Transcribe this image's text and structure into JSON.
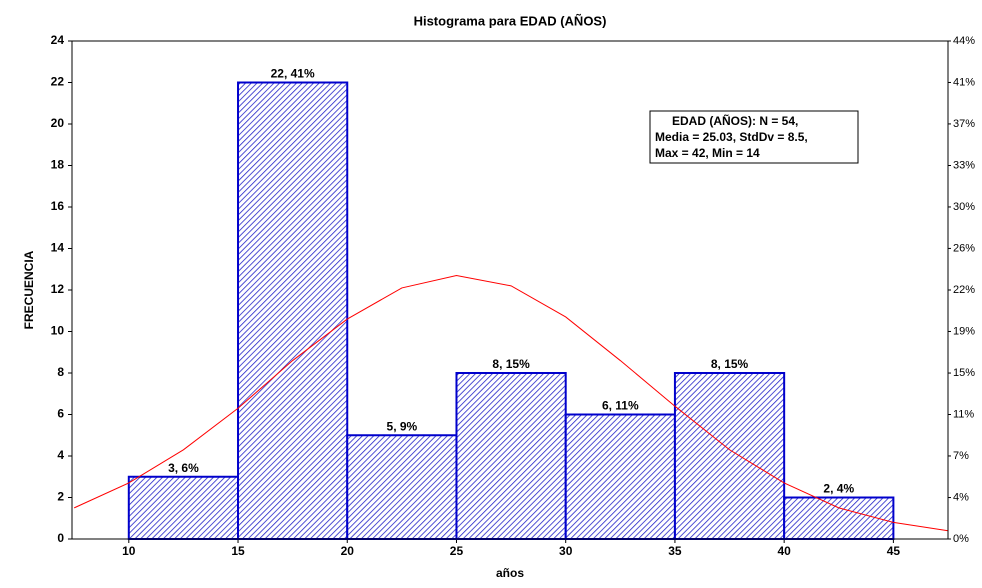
{
  "chart_data": {
    "type": "histogram",
    "title": "Histograma para  EDAD (AÑOS)",
    "x_label": "años",
    "y_label": "FRECUENCIA",
    "bins": [
      10,
      15,
      20,
      25,
      30,
      35,
      40,
      45
    ],
    "values": [
      3,
      22,
      5,
      8,
      6,
      8,
      2
    ],
    "value_labels": [
      "3, 6%",
      "22, 41%",
      "5, 9%",
      "8, 15%",
      "6, 11%",
      "8, 15%",
      "2, 4%"
    ],
    "color": "#0000cc",
    "xlim": [
      7.4,
      47.5
    ],
    "xticks": [
      10,
      15,
      20,
      25,
      30,
      35,
      40,
      45
    ],
    "ylim": [
      0,
      24
    ],
    "yticks": [
      0,
      2,
      4,
      6,
      8,
      10,
      12,
      14,
      16,
      18,
      20,
      22,
      24
    ],
    "y2lim": [
      0,
      44.44
    ],
    "y2ticks": [
      {
        "value": 0,
        "label": "0%"
      },
      {
        "value": 3.7,
        "label": "4%"
      },
      {
        "value": 7.41,
        "label": "7%"
      },
      {
        "value": 11.11,
        "label": "11%"
      },
      {
        "value": 14.81,
        "label": "15%"
      },
      {
        "value": 18.52,
        "label": "19%"
      },
      {
        "value": 22.22,
        "label": "22%"
      },
      {
        "value": 25.93,
        "label": "26%"
      },
      {
        "value": 29.63,
        "label": "30%"
      },
      {
        "value": 33.33,
        "label": "33%"
      },
      {
        "value": 37.04,
        "label": "37%"
      },
      {
        "value": 40.74,
        "label": "41%"
      },
      {
        "value": 44.44,
        "label": "44%"
      }
    ],
    "fit_curve": {
      "color": "#ff0000",
      "x": [
        7.5,
        10,
        12.5,
        15,
        17.5,
        20,
        22.5,
        25,
        27.5,
        30,
        32.5,
        35,
        37.5,
        40,
        42.5,
        45,
        47.5
      ],
      "y": [
        1.5,
        2.7,
        4.3,
        6.3,
        8.6,
        10.6,
        12.1,
        12.7,
        12.2,
        10.7,
        8.6,
        6.4,
        4.3,
        2.7,
        1.5,
        0.8,
        0.4
      ]
    },
    "annotation": [
      "EDAD (AÑOS):   N = 54,",
      "Media = 25.03, StdDv = 8.5,",
      "Max = 42, Min = 14"
    ]
  }
}
